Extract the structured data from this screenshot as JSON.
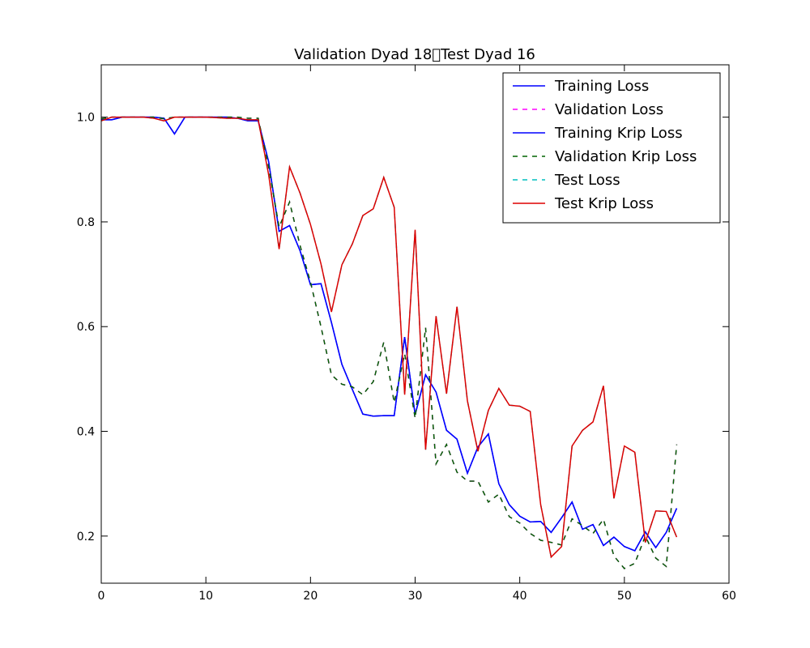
{
  "chart_data": {
    "type": "line",
    "title": "Validation Dyad 18\u0000Test Dyad 16",
    "xlabel": "",
    "ylabel": "",
    "xlim": [
      0,
      60
    ],
    "ylim": [
      0.11,
      1.1
    ],
    "xticks": [
      0,
      10,
      20,
      30,
      40,
      50,
      60
    ],
    "yticks": [
      0.2,
      0.4,
      0.6,
      0.8,
      1.0
    ],
    "xtick_labels": [
      "0",
      "10",
      "20",
      "30",
      "40",
      "50",
      "60"
    ],
    "ytick_labels": [
      "0.2",
      "0.4",
      "0.6",
      "0.8",
      "1.0"
    ],
    "grid": false,
    "legend_position": "top-right",
    "series": [
      {
        "name": "Training Loss",
        "color": "#0000ff",
        "dash": "solid",
        "x": [
          0,
          1,
          2,
          3,
          4,
          5,
          6,
          7,
          8,
          9,
          10,
          11,
          12,
          13,
          14,
          15,
          16,
          17,
          18,
          19,
          20,
          21,
          22,
          23,
          24,
          25,
          26,
          27,
          28,
          29,
          30,
          31,
          32,
          33,
          34,
          35,
          36,
          37,
          38,
          39,
          40,
          41,
          42,
          43,
          44,
          45,
          46,
          47,
          48,
          49,
          50,
          51,
          52,
          53,
          54,
          55
        ],
        "values": [
          0.995,
          0.995,
          1.0,
          1.0,
          1.0,
          1.0,
          0.998,
          0.968,
          1.0,
          1.0,
          1.0,
          1.0,
          1.0,
          0.998,
          0.993,
          0.993,
          0.915,
          0.782,
          0.793,
          0.745,
          0.68,
          0.682,
          0.608,
          0.528,
          0.48,
          0.433,
          0.429,
          0.43,
          0.43,
          0.58,
          0.432,
          0.508,
          0.475,
          0.402,
          0.385,
          0.32,
          0.37,
          0.395,
          0.3,
          0.26,
          0.238,
          0.227,
          0.228,
          0.207,
          0.235,
          0.265,
          0.213,
          0.222,
          0.182,
          0.198,
          0.18,
          0.172,
          0.208,
          0.178,
          0.207,
          0.253
        ]
      },
      {
        "name": "Validation Loss",
        "color": "#ff00ff",
        "dash": "dashed",
        "x": [
          0,
          1,
          2,
          3,
          4,
          5,
          6,
          7,
          8,
          9,
          10,
          11,
          12,
          13,
          14,
          15,
          16,
          17,
          18,
          19,
          20,
          21,
          22,
          23,
          24,
          25,
          26,
          27,
          28,
          29,
          30,
          31,
          32,
          33,
          34,
          35,
          36,
          37,
          38,
          39,
          40,
          41,
          42,
          43,
          44,
          45,
          46,
          47,
          48,
          49,
          50,
          51,
          52,
          53,
          54,
          55
        ],
        "values": [
          0.997,
          1.0,
          1.0,
          1.0,
          1.0,
          1.0,
          0.997,
          1.0,
          1.0,
          1.0,
          1.0,
          1.0,
          1.0,
          1.0,
          0.998,
          0.998,
          0.905,
          0.79,
          0.838,
          0.755,
          0.685,
          0.6,
          0.508,
          0.49,
          0.485,
          0.47,
          0.495,
          0.57,
          0.455,
          0.548,
          0.425,
          0.598,
          0.338,
          0.375,
          0.322,
          0.305,
          0.305,
          0.265,
          0.28,
          0.237,
          0.225,
          0.205,
          0.192,
          0.188,
          0.183,
          0.233,
          0.22,
          0.205,
          0.232,
          0.162,
          0.138,
          0.148,
          0.2,
          0.158,
          0.142,
          0.375
        ]
      },
      {
        "name": "Training Krip Loss",
        "color": "#0000ff",
        "dash": "solid",
        "x": [
          0,
          1,
          2,
          3,
          4,
          5,
          6,
          7,
          8,
          9,
          10,
          11,
          12,
          13,
          14,
          15,
          16,
          17,
          18,
          19,
          20,
          21,
          22,
          23,
          24,
          25,
          26,
          27,
          28,
          29,
          30,
          31,
          32,
          33,
          34,
          35,
          36,
          37,
          38,
          39,
          40,
          41,
          42,
          43,
          44,
          45,
          46,
          47,
          48,
          49,
          50,
          51,
          52,
          53,
          54,
          55
        ],
        "values": [
          0.995,
          0.995,
          1.0,
          1.0,
          1.0,
          1.0,
          0.998,
          0.968,
          1.0,
          1.0,
          1.0,
          1.0,
          1.0,
          0.998,
          0.993,
          0.993,
          0.915,
          0.782,
          0.793,
          0.745,
          0.68,
          0.682,
          0.608,
          0.528,
          0.48,
          0.433,
          0.429,
          0.43,
          0.43,
          0.58,
          0.432,
          0.508,
          0.475,
          0.402,
          0.385,
          0.32,
          0.37,
          0.395,
          0.3,
          0.26,
          0.238,
          0.227,
          0.228,
          0.207,
          0.235,
          0.265,
          0.213,
          0.222,
          0.182,
          0.198,
          0.18,
          0.172,
          0.208,
          0.178,
          0.207,
          0.253
        ]
      },
      {
        "name": "Validation Krip Loss",
        "color": "#006400",
        "dash": "dashed",
        "x": [
          0,
          1,
          2,
          3,
          4,
          5,
          6,
          7,
          8,
          9,
          10,
          11,
          12,
          13,
          14,
          15,
          16,
          17,
          18,
          19,
          20,
          21,
          22,
          23,
          24,
          25,
          26,
          27,
          28,
          29,
          30,
          31,
          32,
          33,
          34,
          35,
          36,
          37,
          38,
          39,
          40,
          41,
          42,
          43,
          44,
          45,
          46,
          47,
          48,
          49,
          50,
          51,
          52,
          53,
          54,
          55
        ],
        "values": [
          0.997,
          1.0,
          1.0,
          1.0,
          1.0,
          1.0,
          0.997,
          1.0,
          1.0,
          1.0,
          1.0,
          1.0,
          1.0,
          1.0,
          0.998,
          0.998,
          0.905,
          0.79,
          0.838,
          0.755,
          0.685,
          0.6,
          0.508,
          0.49,
          0.485,
          0.47,
          0.495,
          0.57,
          0.455,
          0.548,
          0.425,
          0.598,
          0.338,
          0.375,
          0.322,
          0.305,
          0.305,
          0.265,
          0.28,
          0.237,
          0.225,
          0.205,
          0.192,
          0.188,
          0.183,
          0.233,
          0.22,
          0.205,
          0.232,
          0.162,
          0.138,
          0.148,
          0.2,
          0.158,
          0.142,
          0.375
        ]
      },
      {
        "name": "Test Loss",
        "color": "#00bfbf",
        "dash": "dashed",
        "x": [
          0,
          1,
          2,
          3,
          4,
          5,
          6,
          7,
          8,
          9,
          10,
          11,
          12,
          13,
          14,
          15,
          16,
          17,
          18,
          19,
          20,
          21,
          22,
          23,
          24,
          25,
          26,
          27,
          28,
          29,
          30,
          31,
          32,
          33,
          34,
          35,
          36,
          37,
          38,
          39,
          40,
          41,
          42,
          43,
          44,
          45,
          46,
          47,
          48,
          49,
          50,
          51,
          52,
          53,
          54,
          55
        ],
        "values": [
          0.993,
          1.0,
          1.0,
          1.0,
          1.0,
          0.998,
          0.993,
          1.0,
          1.0,
          1.0,
          1.0,
          0.999,
          0.998,
          0.998,
          0.995,
          0.995,
          0.89,
          0.748,
          0.905,
          0.855,
          0.795,
          0.72,
          0.628,
          0.718,
          0.758,
          0.812,
          0.825,
          0.885,
          0.828,
          0.47,
          0.785,
          0.365,
          0.62,
          0.472,
          0.638,
          0.458,
          0.362,
          0.44,
          0.482,
          0.45,
          0.448,
          0.438,
          0.26,
          0.16,
          0.18,
          0.372,
          0.402,
          0.418,
          0.487,
          0.272,
          0.372,
          0.36,
          0.188,
          0.248,
          0.247,
          0.198
        ]
      },
      {
        "name": "Test Krip Loss",
        "color": "#dd0000",
        "dash": "solid",
        "x": [
          0,
          1,
          2,
          3,
          4,
          5,
          6,
          7,
          8,
          9,
          10,
          11,
          12,
          13,
          14,
          15,
          16,
          17,
          18,
          19,
          20,
          21,
          22,
          23,
          24,
          25,
          26,
          27,
          28,
          29,
          30,
          31,
          32,
          33,
          34,
          35,
          36,
          37,
          38,
          39,
          40,
          41,
          42,
          43,
          44,
          45,
          46,
          47,
          48,
          49,
          50,
          51,
          52,
          53,
          54,
          55
        ],
        "values": [
          0.993,
          1.0,
          1.0,
          1.0,
          1.0,
          0.998,
          0.993,
          1.0,
          1.0,
          1.0,
          1.0,
          0.999,
          0.998,
          0.998,
          0.995,
          0.995,
          0.89,
          0.748,
          0.905,
          0.855,
          0.795,
          0.72,
          0.628,
          0.718,
          0.758,
          0.812,
          0.825,
          0.885,
          0.828,
          0.47,
          0.785,
          0.365,
          0.62,
          0.472,
          0.638,
          0.458,
          0.362,
          0.44,
          0.482,
          0.45,
          0.448,
          0.438,
          0.26,
          0.16,
          0.18,
          0.372,
          0.402,
          0.418,
          0.487,
          0.272,
          0.372,
          0.36,
          0.188,
          0.248,
          0.247,
          0.198
        ]
      }
    ]
  }
}
